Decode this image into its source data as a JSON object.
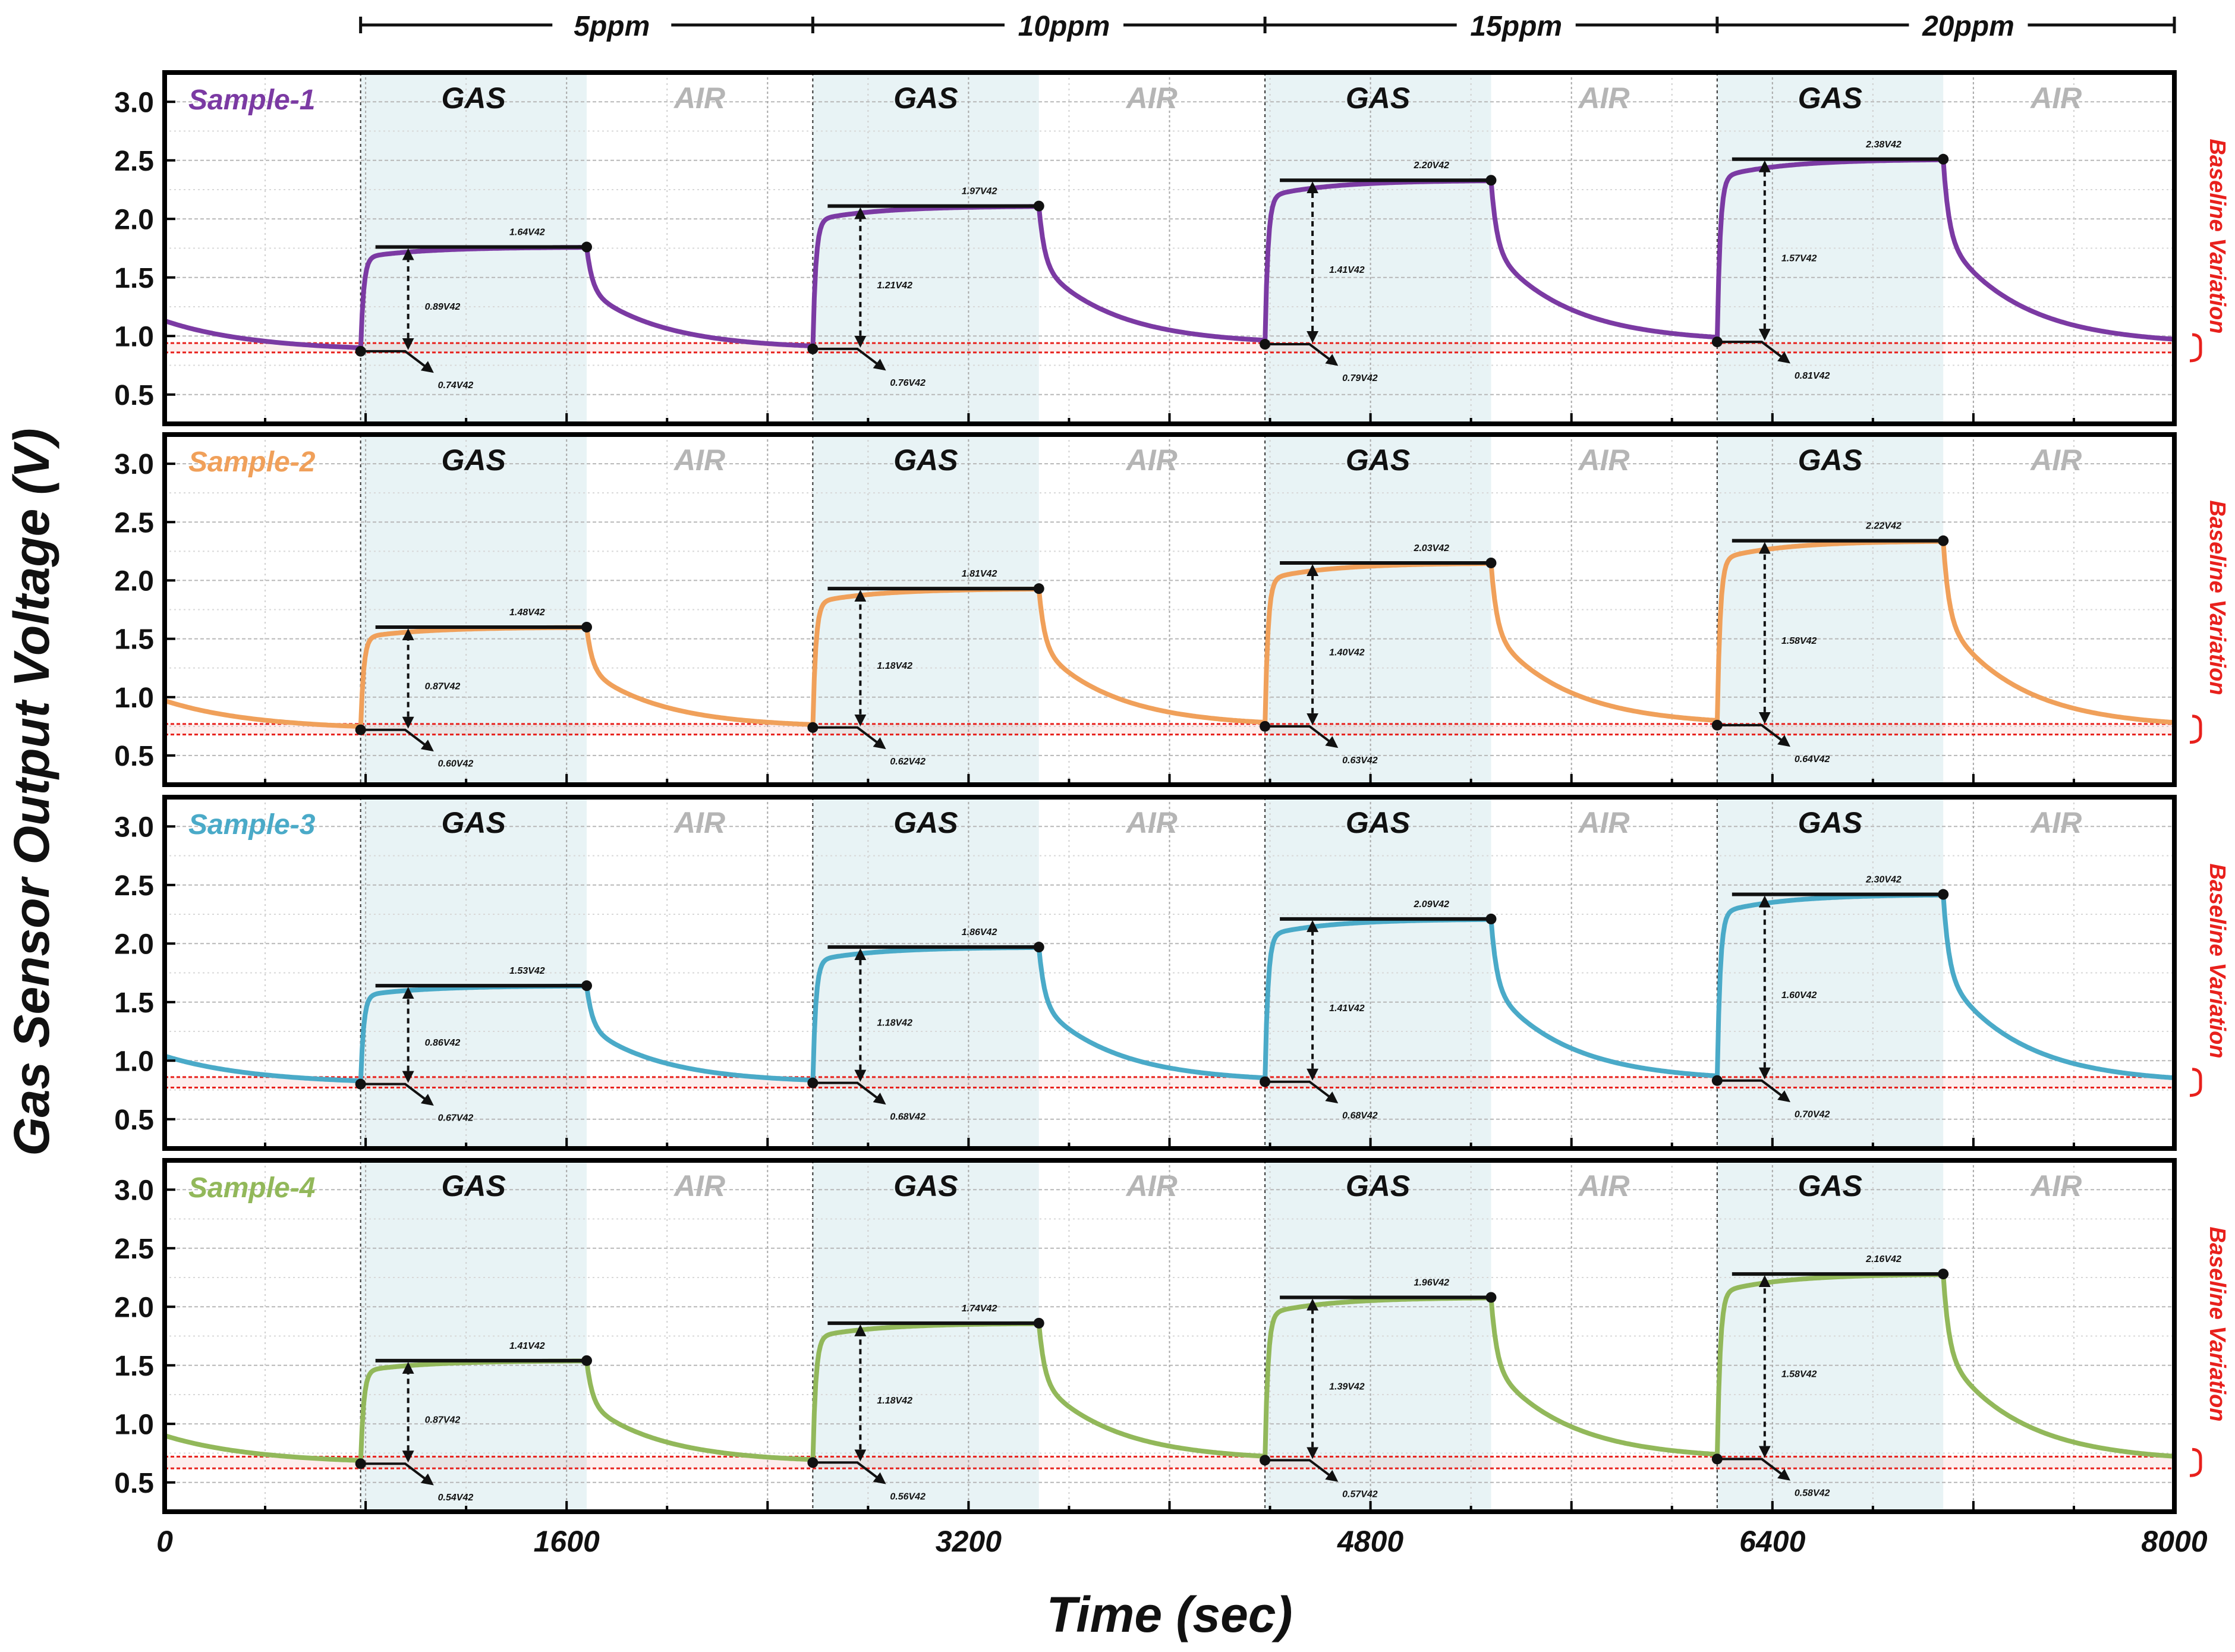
{
  "chart_data": {
    "type": "line",
    "ylabel": "Gas Sensor Output Voltage (V)",
    "xlabel": "Time (sec)",
    "xlim": [
      0,
      8000
    ],
    "ylim": [
      0.25,
      3.25
    ],
    "x_ticks": [
      "0",
      "1600",
      "3200",
      "4800",
      "6400",
      "8000"
    ],
    "y_ticks": [
      "0.5",
      "1.0",
      "1.5",
      "2.0",
      "2.5",
      "3.0"
    ],
    "gas_label": "GAS",
    "air_label": "AIR",
    "side_label": "Baseline Variation",
    "concentrations": [
      "5ppm",
      "10ppm",
      "15ppm",
      "20ppm"
    ],
    "gas_windows": [
      [
        780,
        1680
      ],
      [
        2580,
        3480
      ],
      [
        4380,
        5280
      ],
      [
        6180,
        7080
      ]
    ],
    "colors": {
      "sample_1": "#7b3aa3",
      "sample_2": "#f0a05a",
      "sample_3": "#4aaac8",
      "sample_4": "#92b85a",
      "gas_shade": "#e8f3f5",
      "baseline": "#e8201c"
    },
    "series": [
      {
        "name": "Sample-1",
        "start_value": 1.13,
        "baseline_band": [
          0.86,
          0.94
        ],
        "pulses": [
          {
            "base": 0.87,
            "peak": 1.76,
            "peak_label": "1.64V",
            "delta_label": "0.89V",
            "sb_label": "0.74V"
          },
          {
            "base": 0.89,
            "peak": 2.11,
            "peak_label": "1.97V",
            "delta_label": "1.21V",
            "sb_label": "0.76V"
          },
          {
            "base": 0.93,
            "peak": 2.33,
            "peak_label": "2.20V",
            "delta_label": "1.41V",
            "sb_label": "0.79V"
          },
          {
            "base": 0.95,
            "peak": 2.51,
            "peak_label": "2.38V",
            "delta_label": "1.57V",
            "sb_label": "0.81V"
          }
        ]
      },
      {
        "name": "Sample-2",
        "start_value": 0.97,
        "baseline_band": [
          0.68,
          0.77
        ],
        "pulses": [
          {
            "base": 0.72,
            "peak": 1.6,
            "peak_label": "1.48V",
            "delta_label": "0.87V",
            "sb_label": "0.60V"
          },
          {
            "base": 0.74,
            "peak": 1.93,
            "peak_label": "1.81V",
            "delta_label": "1.18V",
            "sb_label": "0.62V"
          },
          {
            "base": 0.75,
            "peak": 2.15,
            "peak_label": "2.03V",
            "delta_label": "1.40V",
            "sb_label": "0.63V"
          },
          {
            "base": 0.76,
            "peak": 2.34,
            "peak_label": "2.22V",
            "delta_label": "1.58V",
            "sb_label": "0.64V"
          }
        ]
      },
      {
        "name": "Sample-3",
        "start_value": 1.04,
        "baseline_band": [
          0.77,
          0.86
        ],
        "pulses": [
          {
            "base": 0.8,
            "peak": 1.64,
            "peak_label": "1.53V",
            "delta_label": "0.86V",
            "sb_label": "0.67V"
          },
          {
            "base": 0.81,
            "peak": 1.97,
            "peak_label": "1.86V",
            "delta_label": "1.18V",
            "sb_label": "0.68V"
          },
          {
            "base": 0.82,
            "peak": 2.21,
            "peak_label": "2.09V",
            "delta_label": "1.41V",
            "sb_label": "0.68V"
          },
          {
            "base": 0.83,
            "peak": 2.42,
            "peak_label": "2.30V",
            "delta_label": "1.60V",
            "sb_label": "0.70V"
          }
        ]
      },
      {
        "name": "Sample-4",
        "start_value": 0.9,
        "baseline_band": [
          0.62,
          0.72
        ],
        "pulses": [
          {
            "base": 0.66,
            "peak": 1.54,
            "peak_label": "1.41V",
            "delta_label": "0.87V",
            "sb_label": "0.54V"
          },
          {
            "base": 0.67,
            "peak": 1.86,
            "peak_label": "1.74V",
            "delta_label": "1.18V",
            "sb_label": "0.56V"
          },
          {
            "base": 0.69,
            "peak": 2.08,
            "peak_label": "1.96V",
            "delta_label": "1.39V",
            "sb_label": "0.57V"
          },
          {
            "base": 0.7,
            "peak": 2.28,
            "peak_label": "2.16V",
            "delta_label": "1.58V",
            "sb_label": "0.58V"
          }
        ]
      }
    ]
  }
}
